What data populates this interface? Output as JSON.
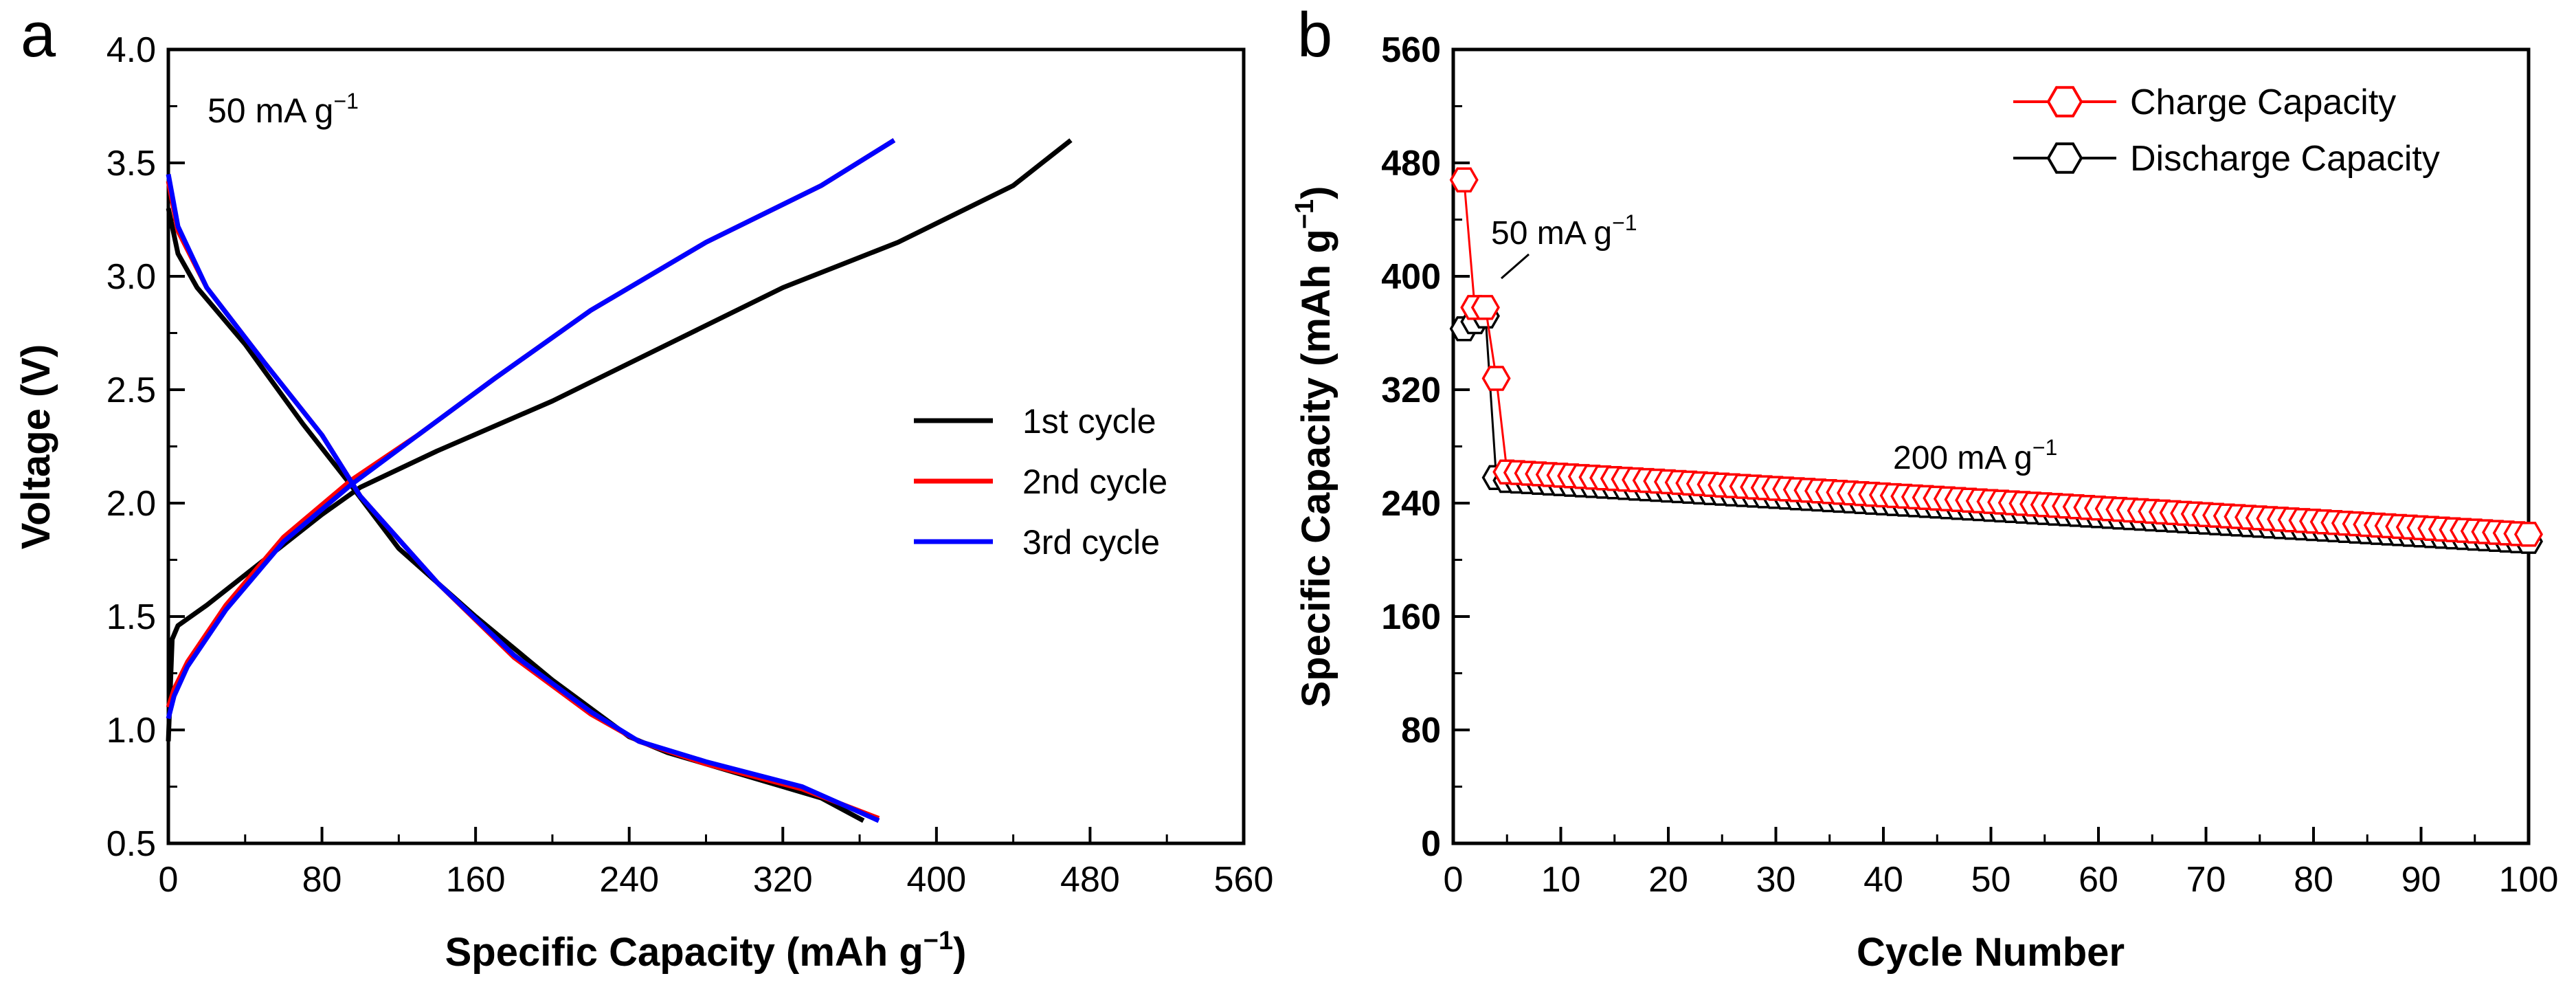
{
  "chart_data": [
    {
      "panel": "a",
      "type": "line",
      "xlabel": "Specific Capacity (mAh g",
      "xlabel_sup": "−1",
      "xlabel_end": ")",
      "ylabel": "Voltage (V)",
      "xlim": [
        0,
        560
      ],
      "ylim": [
        0.5,
        4.0
      ],
      "xticks": [
        0,
        80,
        160,
        240,
        320,
        400,
        480,
        560
      ],
      "yticks": [
        0.5,
        1.0,
        1.5,
        2.0,
        2.5,
        3.0,
        3.5,
        4.0
      ],
      "ytick_labels": [
        "0.5",
        "1.0",
        "1.5",
        "2.0",
        "2.5",
        "3.0",
        "3.5",
        "4.0"
      ],
      "annotation": {
        "text": "50 mA g",
        "sup": "−1"
      },
      "legend_position": "center-right",
      "series": [
        {
          "name": "1st cycle",
          "color": "#000000",
          "charge": [
            [
              0,
              0.95
            ],
            [
              2,
              1.4
            ],
            [
              5,
              1.46
            ],
            [
              20,
              1.55
            ],
            [
              50,
              1.75
            ],
            [
              80,
              1.95
            ],
            [
              100,
              2.07
            ],
            [
              140,
              2.23
            ],
            [
              200,
              2.45
            ],
            [
              260,
              2.7
            ],
            [
              320,
              2.95
            ],
            [
              380,
              3.15
            ],
            [
              440,
              3.4
            ],
            [
              470,
              3.6
            ]
          ],
          "discharge": [
            [
              0,
              3.3
            ],
            [
              5,
              3.1
            ],
            [
              15,
              2.95
            ],
            [
              40,
              2.7
            ],
            [
              70,
              2.35
            ],
            [
              95,
              2.08
            ],
            [
              120,
              1.8
            ],
            [
              160,
              1.5
            ],
            [
              200,
              1.22
            ],
            [
              240,
              0.97
            ],
            [
              260,
              0.9
            ],
            [
              300,
              0.8
            ],
            [
              340,
              0.7
            ],
            [
              362,
              0.6
            ]
          ]
        },
        {
          "name": "2nd cycle",
          "color": "#ff0000",
          "charge": [
            [
              0,
              1.1
            ],
            [
              3,
              1.18
            ],
            [
              10,
              1.3
            ],
            [
              30,
              1.55
            ],
            [
              60,
              1.85
            ],
            [
              95,
              2.1
            ],
            [
              130,
              2.3
            ],
            [
              170,
              2.55
            ],
            [
              220,
              2.85
            ],
            [
              280,
              3.15
            ],
            [
              340,
              3.4
            ],
            [
              378,
              3.6
            ]
          ],
          "discharge": [
            [
              0,
              3.42
            ],
            [
              5,
              3.2
            ],
            [
              20,
              2.95
            ],
            [
              50,
              2.62
            ],
            [
              80,
              2.3
            ],
            [
              100,
              2.03
            ],
            [
              140,
              1.65
            ],
            [
              180,
              1.32
            ],
            [
              220,
              1.07
            ],
            [
              245,
              0.95
            ],
            [
              280,
              0.85
            ],
            [
              330,
              0.74
            ],
            [
              370,
              0.61
            ]
          ]
        },
        {
          "name": "3rd cycle",
          "color": "#0000ff",
          "charge": [
            [
              0,
              1.05
            ],
            [
              3,
              1.15
            ],
            [
              10,
              1.28
            ],
            [
              30,
              1.53
            ],
            [
              60,
              1.83
            ],
            [
              95,
              2.08
            ],
            [
              130,
              2.3
            ],
            [
              170,
              2.55
            ],
            [
              220,
              2.85
            ],
            [
              280,
              3.15
            ],
            [
              340,
              3.4
            ],
            [
              378,
              3.6
            ]
          ],
          "discharge": [
            [
              0,
              3.45
            ],
            [
              5,
              3.22
            ],
            [
              20,
              2.95
            ],
            [
              50,
              2.62
            ],
            [
              80,
              2.3
            ],
            [
              100,
              2.03
            ],
            [
              140,
              1.65
            ],
            [
              180,
              1.33
            ],
            [
              220,
              1.08
            ],
            [
              245,
              0.95
            ],
            [
              280,
              0.86
            ],
            [
              330,
              0.75
            ],
            [
              370,
              0.6
            ]
          ]
        }
      ]
    },
    {
      "panel": "b",
      "type": "scatter",
      "xlabel": "Cycle Number",
      "ylabel": "Specific Capacity (mAh g",
      "ylabel_sup": "−1",
      "ylabel_end": ")",
      "xlim": [
        0,
        100
      ],
      "ylim": [
        0,
        560
      ],
      "xticks": [
        0,
        10,
        20,
        30,
        40,
        50,
        60,
        70,
        80,
        90,
        100
      ],
      "yticks": [
        0,
        80,
        160,
        240,
        320,
        400,
        480,
        560
      ],
      "annotations": [
        {
          "text": "50 mA g",
          "sup": "−1"
        },
        {
          "text": "200 mA g",
          "sup": "−1"
        }
      ],
      "legend_position": "top-right",
      "series": [
        {
          "name": "Charge Capacity",
          "color": "#ff0000",
          "marker": "hexagon-open",
          "first_values": [
            468,
            378,
            378,
            328
          ],
          "start_value": 262,
          "end_value": 218
        },
        {
          "name": "Discharge Capacity",
          "color": "#000000",
          "marker": "hexagon-open",
          "first_values": [
            363,
            368,
            372,
            258
          ],
          "start_value": 256,
          "end_value": 213
        }
      ]
    }
  ]
}
